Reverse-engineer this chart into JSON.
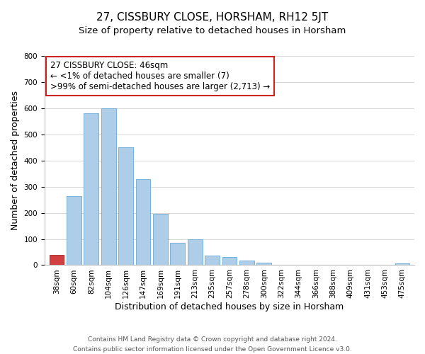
{
  "title": "27, CISSBURY CLOSE, HORSHAM, RH12 5JT",
  "subtitle": "Size of property relative to detached houses in Horsham",
  "xlabel": "Distribution of detached houses by size in Horsham",
  "ylabel": "Number of detached properties",
  "bar_labels": [
    "38sqm",
    "60sqm",
    "82sqm",
    "104sqm",
    "126sqm",
    "147sqm",
    "169sqm",
    "191sqm",
    "213sqm",
    "235sqm",
    "257sqm",
    "278sqm",
    "300sqm",
    "322sqm",
    "344sqm",
    "366sqm",
    "388sqm",
    "409sqm",
    "431sqm",
    "453sqm",
    "475sqm"
  ],
  "bar_values": [
    40,
    265,
    580,
    600,
    450,
    330,
    195,
    85,
    100,
    37,
    32,
    18,
    10,
    0,
    0,
    0,
    0,
    0,
    0,
    0,
    8
  ],
  "bar_color": "#aecde8",
  "bar_edge_color": "#6aaad4",
  "highlight_bar_index": 0,
  "highlight_bar_color": "#d04040",
  "highlight_bar_edge_color": "#aa2020",
  "ylim": [
    0,
    800
  ],
  "yticks": [
    0,
    100,
    200,
    300,
    400,
    500,
    600,
    700,
    800
  ],
  "annotation_line1": "27 CISSBURY CLOSE: 46sqm",
  "annotation_line2": "← <1% of detached houses are smaller (7)",
  "annotation_line3": ">99% of semi-detached houses are larger (2,713) →",
  "annotation_box_color": "#ffffff",
  "annotation_box_edge_color": "#cc2222",
  "footer_line1": "Contains HM Land Registry data © Crown copyright and database right 2024.",
  "footer_line2": "Contains public sector information licensed under the Open Government Licence v3.0.",
  "background_color": "#ffffff",
  "grid_color": "#d0d0d0",
  "title_fontsize": 11,
  "subtitle_fontsize": 9.5,
  "axis_label_fontsize": 9,
  "tick_fontsize": 7.5,
  "annotation_fontsize": 8.5,
  "footer_fontsize": 6.5
}
